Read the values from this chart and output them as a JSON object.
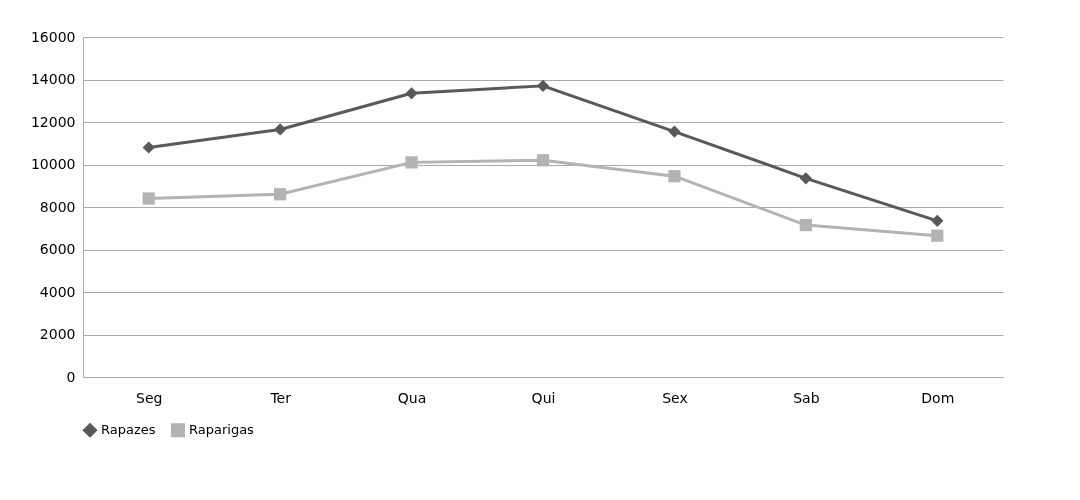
{
  "chart_data": {
    "type": "line",
    "categories": [
      "Seg",
      "Ter",
      "Qua",
      "Qui",
      "Sex",
      "Sab",
      "Dom"
    ],
    "series": [
      {
        "name": "Rapazes",
        "color": "#595959",
        "marker": "diamond",
        "values": [
          10800,
          11650,
          13350,
          13700,
          11550,
          9350,
          7350
        ]
      },
      {
        "name": "Raparigas",
        "color": "#b3b3b3",
        "marker": "square",
        "values": [
          8400,
          8600,
          10100,
          10200,
          9450,
          7150,
          6650
        ]
      }
    ],
    "ylim": [
      0,
      16000
    ],
    "yticks": [
      0,
      2000,
      4000,
      6000,
      8000,
      10000,
      12000,
      14000,
      16000
    ],
    "grid": "y",
    "legend": "bottom",
    "line_style": "solid"
  }
}
